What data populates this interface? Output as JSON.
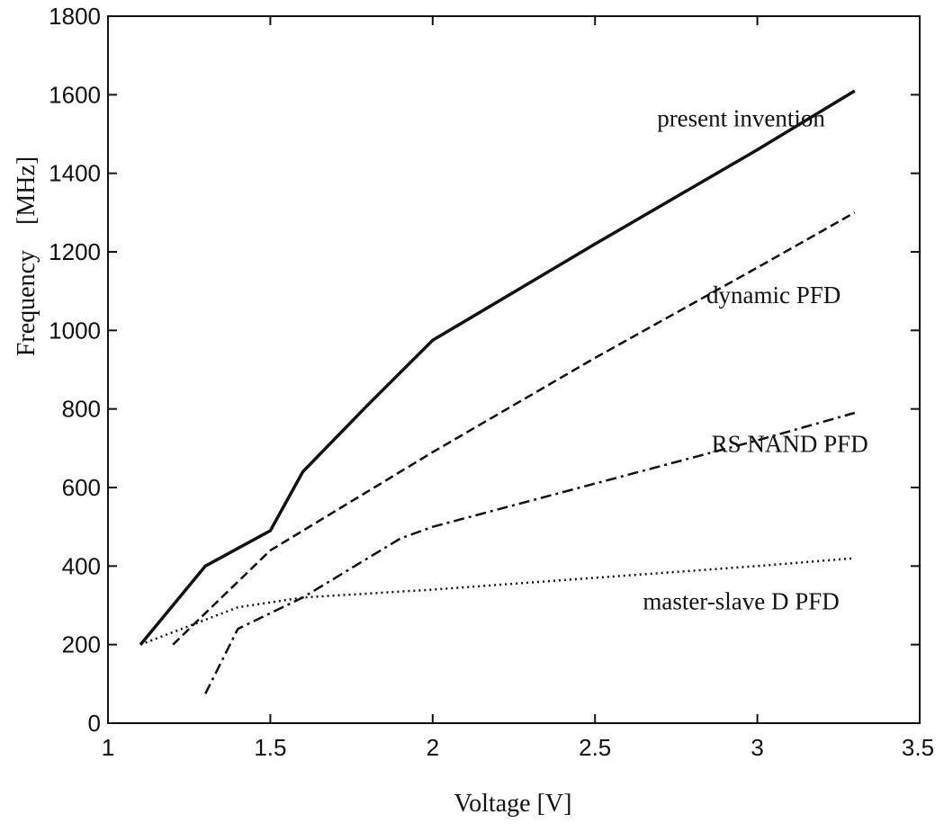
{
  "chart_data": {
    "type": "line",
    "title": "",
    "xlabel": "Voltage [V]",
    "ylabel": "Frequency    [MHz]",
    "xlim": [
      1,
      3.5
    ],
    "ylim": [
      0,
      1800
    ],
    "x_ticks": [
      1,
      1.5,
      2,
      2.5,
      3,
      3.5
    ],
    "y_ticks": [
      0,
      200,
      400,
      600,
      800,
      1000,
      1200,
      1400,
      1600,
      1800
    ],
    "x_tick_labels": [
      "1",
      "1.5",
      "2",
      "2.5",
      "3",
      "3.5"
    ],
    "y_tick_labels": [
      "0",
      "200",
      "400",
      "600",
      "800",
      "1000",
      "1200",
      "1400",
      "1600",
      "1800"
    ],
    "grid": false,
    "legend": "none (series labeled by inline annotations)",
    "series": [
      {
        "name": "present invention",
        "style": "solid",
        "color": "#111111",
        "x": [
          1.1,
          1.3,
          1.5,
          1.6,
          1.8,
          2.0,
          2.5,
          3.0,
          3.3
        ],
        "y": [
          200,
          400,
          490,
          640,
          810,
          975,
          1220,
          1460,
          1610
        ]
      },
      {
        "name": "dynamic PFD",
        "style": "dashed",
        "color": "#111111",
        "x": [
          1.2,
          1.3,
          1.5,
          2.0,
          2.5,
          3.0,
          3.3
        ],
        "y": [
          200,
          280,
          440,
          690,
          930,
          1160,
          1300
        ]
      },
      {
        "name": "RS NAND PFD",
        "style": "dashdot",
        "color": "#111111",
        "x": [
          1.3,
          1.4,
          1.6,
          1.9,
          2.0,
          2.5,
          3.0,
          3.3
        ],
        "y": [
          75,
          240,
          320,
          470,
          500,
          610,
          720,
          790
        ]
      },
      {
        "name": "master-slave D PFD",
        "style": "dotted",
        "color": "#111111",
        "x": [
          1.1,
          1.4,
          1.6,
          2.0,
          2.5,
          3.0,
          3.3
        ],
        "y": [
          200,
          295,
          320,
          340,
          370,
          400,
          420
        ]
      }
    ],
    "annotations": [
      {
        "text": "present invention",
        "x": 2.95,
        "y": 1520
      },
      {
        "text": "dynamic PFD",
        "x": 3.05,
        "y": 1070
      },
      {
        "text": "RS NAND PFD",
        "x": 3.1,
        "y": 690
      },
      {
        "text": "master-slave D PFD",
        "x": 2.95,
        "y": 290
      }
    ]
  }
}
